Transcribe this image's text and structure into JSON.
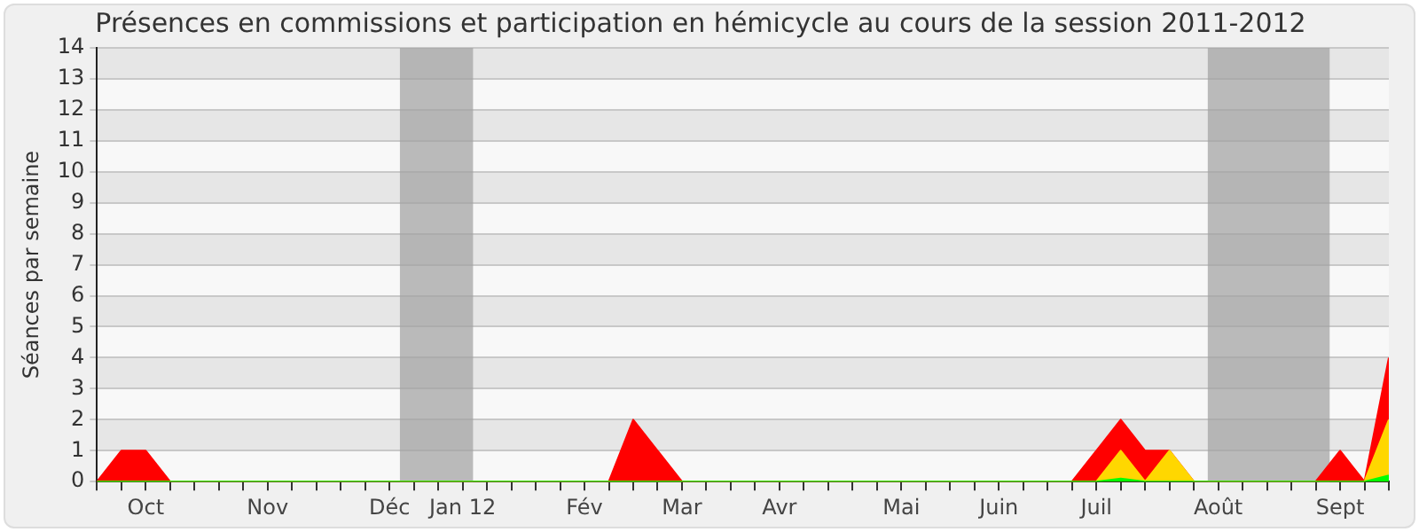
{
  "chart_data": {
    "type": "area",
    "title": "Présences en commissions et participation en hémicycle au cours de la session 2011-2012",
    "ylabel": "Séances par semaine",
    "x": [
      "2011-09-19",
      "2011-09-26",
      "2011-10-03",
      "2011-10-10",
      "2011-10-17",
      "2011-10-24",
      "2011-10-31",
      "2011-11-07",
      "2011-11-14",
      "2011-11-21",
      "2011-11-28",
      "2011-12-05",
      "2011-12-12",
      "2011-12-19",
      "2011-12-26",
      "2012-01-02",
      "2012-01-09",
      "2012-01-16",
      "2012-01-23",
      "2012-01-30",
      "2012-02-06",
      "2012-02-13",
      "2012-02-20",
      "2012-02-27",
      "2012-03-05",
      "2012-03-12",
      "2012-03-19",
      "2012-03-26",
      "2012-04-02",
      "2012-04-09",
      "2012-04-16",
      "2012-04-23",
      "2012-04-30",
      "2012-05-07",
      "2012-05-14",
      "2012-05-21",
      "2012-05-28",
      "2012-06-04",
      "2012-06-11",
      "2012-06-18",
      "2012-06-25",
      "2012-07-02",
      "2012-07-09",
      "2012-07-16",
      "2012-07-23",
      "2012-07-30",
      "2012-08-06",
      "2012-08-13",
      "2012-08-20",
      "2012-08-27",
      "2012-09-03",
      "2012-09-10",
      "2012-09-17",
      "2012-09-24"
    ],
    "series": [
      {
        "color": "#ff0000",
        "values": [
          0,
          1,
          1,
          0,
          0,
          0,
          0,
          0,
          0,
          0,
          0,
          0,
          0,
          0,
          0,
          0,
          0,
          0,
          0,
          0,
          0,
          0,
          2,
          1,
          0,
          0,
          0,
          0,
          0,
          0,
          0,
          0,
          0,
          0,
          0,
          0,
          0,
          0,
          0,
          0,
          0,
          1,
          2,
          1,
          1,
          0,
          0,
          0,
          0,
          0,
          0,
          1,
          0,
          4
        ]
      },
      {
        "color": "#ffd700",
        "values": [
          0,
          0,
          0,
          0,
          0,
          0,
          0,
          0,
          0,
          0,
          0,
          0,
          0,
          0,
          0,
          0,
          0,
          0,
          0,
          0,
          0,
          0,
          0,
          0,
          0,
          0,
          0,
          0,
          0,
          0,
          0,
          0,
          0,
          0,
          0,
          0,
          0,
          0,
          0,
          0,
          0,
          0,
          1,
          0,
          1,
          0,
          0,
          0,
          0,
          0,
          0,
          0,
          0,
          2
        ]
      },
      {
        "color": "#00ff00",
        "values": [
          0,
          0,
          0,
          0,
          0,
          0,
          0,
          0,
          0,
          0,
          0,
          0,
          0,
          0,
          0,
          0,
          0,
          0,
          0,
          0,
          0,
          0,
          0,
          0,
          0,
          0,
          0,
          0,
          0,
          0,
          0,
          0,
          0,
          0,
          0,
          0,
          0,
          0,
          0,
          0,
          0,
          0,
          0.1,
          0,
          0,
          0,
          0,
          0,
          0,
          0,
          0,
          0,
          0,
          0.2
        ]
      }
    ],
    "xlim": [
      "2011-09-19",
      "2012-09-24"
    ],
    "xticks": [
      {
        "value": "2011-09-19",
        "label": null
      },
      {
        "value": "2011-09-26",
        "label": null
      },
      {
        "value": "2011-10-03",
        "label": "Oct"
      },
      {
        "value": "2011-10-10",
        "label": null
      },
      {
        "value": "2011-10-17",
        "label": null
      },
      {
        "value": "2011-10-24",
        "label": null
      },
      {
        "value": "2011-10-31",
        "label": null
      },
      {
        "value": "2011-11-07",
        "label": "Nov"
      },
      {
        "value": "2011-11-14",
        "label": null
      },
      {
        "value": "2011-11-21",
        "label": null
      },
      {
        "value": "2011-11-28",
        "label": null
      },
      {
        "value": "2011-12-05",
        "label": null
      },
      {
        "value": "2011-12-12",
        "label": "Déc"
      },
      {
        "value": "2011-12-19",
        "label": null
      },
      {
        "value": "2011-12-26",
        "label": null
      },
      {
        "value": "2012-01-02",
        "label": "Jan 12"
      },
      {
        "value": "2012-01-09",
        "label": null
      },
      {
        "value": "2012-01-16",
        "label": null
      },
      {
        "value": "2012-01-23",
        "label": null
      },
      {
        "value": "2012-01-30",
        "label": null
      },
      {
        "value": "2012-02-06",
        "label": "Fév"
      },
      {
        "value": "2012-02-13",
        "label": null
      },
      {
        "value": "2012-02-20",
        "label": null
      },
      {
        "value": "2012-02-27",
        "label": null
      },
      {
        "value": "2012-03-05",
        "label": "Mar"
      },
      {
        "value": "2012-03-12",
        "label": null
      },
      {
        "value": "2012-03-19",
        "label": null
      },
      {
        "value": "2012-03-26",
        "label": null
      },
      {
        "value": "2012-04-02",
        "label": "Avr"
      },
      {
        "value": "2012-04-09",
        "label": null
      },
      {
        "value": "2012-04-16",
        "label": null
      },
      {
        "value": "2012-04-23",
        "label": null
      },
      {
        "value": "2012-04-30",
        "label": null
      },
      {
        "value": "2012-05-07",
        "label": "Mai"
      },
      {
        "value": "2012-05-14",
        "label": null
      },
      {
        "value": "2012-05-21",
        "label": null
      },
      {
        "value": "2012-05-28",
        "label": null
      },
      {
        "value": "2012-06-04",
        "label": "Juin"
      },
      {
        "value": "2012-06-11",
        "label": null
      },
      {
        "value": "2012-06-18",
        "label": null
      },
      {
        "value": "2012-06-25",
        "label": null
      },
      {
        "value": "2012-07-02",
        "label": "Juil"
      },
      {
        "value": "2012-07-09",
        "label": null
      },
      {
        "value": "2012-07-16",
        "label": null
      },
      {
        "value": "2012-07-23",
        "label": null
      },
      {
        "value": "2012-07-30",
        "label": null
      },
      {
        "value": "2012-08-06",
        "label": "Août"
      },
      {
        "value": "2012-08-13",
        "label": null
      },
      {
        "value": "2012-08-20",
        "label": null
      },
      {
        "value": "2012-08-27",
        "label": null
      },
      {
        "value": "2012-09-03",
        "label": null
      },
      {
        "value": "2012-09-10",
        "label": "Sept"
      },
      {
        "value": "2012-09-17",
        "label": null
      },
      {
        "value": "2012-09-24",
        "label": null
      }
    ],
    "ylim": [
      0,
      14
    ],
    "yticks": [
      0,
      1,
      2,
      3,
      4,
      5,
      6,
      7,
      8,
      9,
      10,
      11,
      12,
      13,
      14
    ],
    "bands": [
      {
        "axis": "x",
        "from": "2011-12-15",
        "to": "2012-01-05",
        "color": "#a0a0a0"
      },
      {
        "axis": "x",
        "from": "2012-08-03",
        "to": "2012-09-07",
        "color": "#a0a0a0"
      }
    ],
    "grid": "y",
    "legend": false,
    "marker": "none"
  }
}
